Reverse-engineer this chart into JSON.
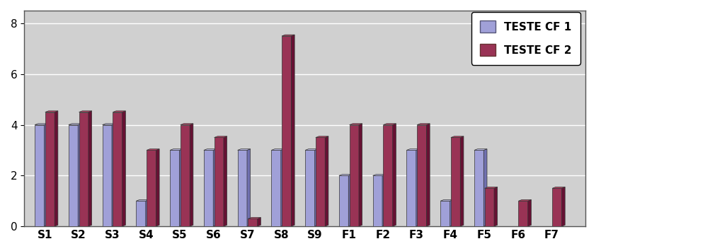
{
  "categories": [
    "S1",
    "S2",
    "S3",
    "S4",
    "S5",
    "S6",
    "S7",
    "S8",
    "S9",
    "F1",
    "F2",
    "F3",
    "F4",
    "F5",
    "F6",
    "F7"
  ],
  "teste_cf1": [
    4,
    4,
    4,
    1,
    3,
    3,
    3,
    3,
    3,
    2,
    2,
    3,
    1,
    3,
    0,
    0
  ],
  "teste_cf2": [
    4.5,
    4.5,
    4.5,
    3,
    4,
    3.5,
    0.3,
    7.5,
    3.5,
    4,
    4,
    4,
    3.5,
    1.5,
    1,
    1.5
  ],
  "color_cf1_front": "#a0a0d8",
  "color_cf1_side": "#7070b0",
  "color_cf1_top": "#c0c0e8",
  "color_cf2_front": "#993355",
  "color_cf2_side": "#661133",
  "color_cf2_top": "#bb4466",
  "ylim": [
    0,
    8.5
  ],
  "yticks": [
    0,
    2,
    4,
    6,
    8
  ],
  "legend_labels": [
    "TESTE CF 1",
    "TESTE CF 2"
  ],
  "background_color": "#c8c8c8",
  "plot_area_color": "#d0d0d0",
  "bar_width": 0.28,
  "depth": 0.08,
  "label_fontsize": 12,
  "tick_fontsize": 11,
  "legend_fontsize": 11
}
